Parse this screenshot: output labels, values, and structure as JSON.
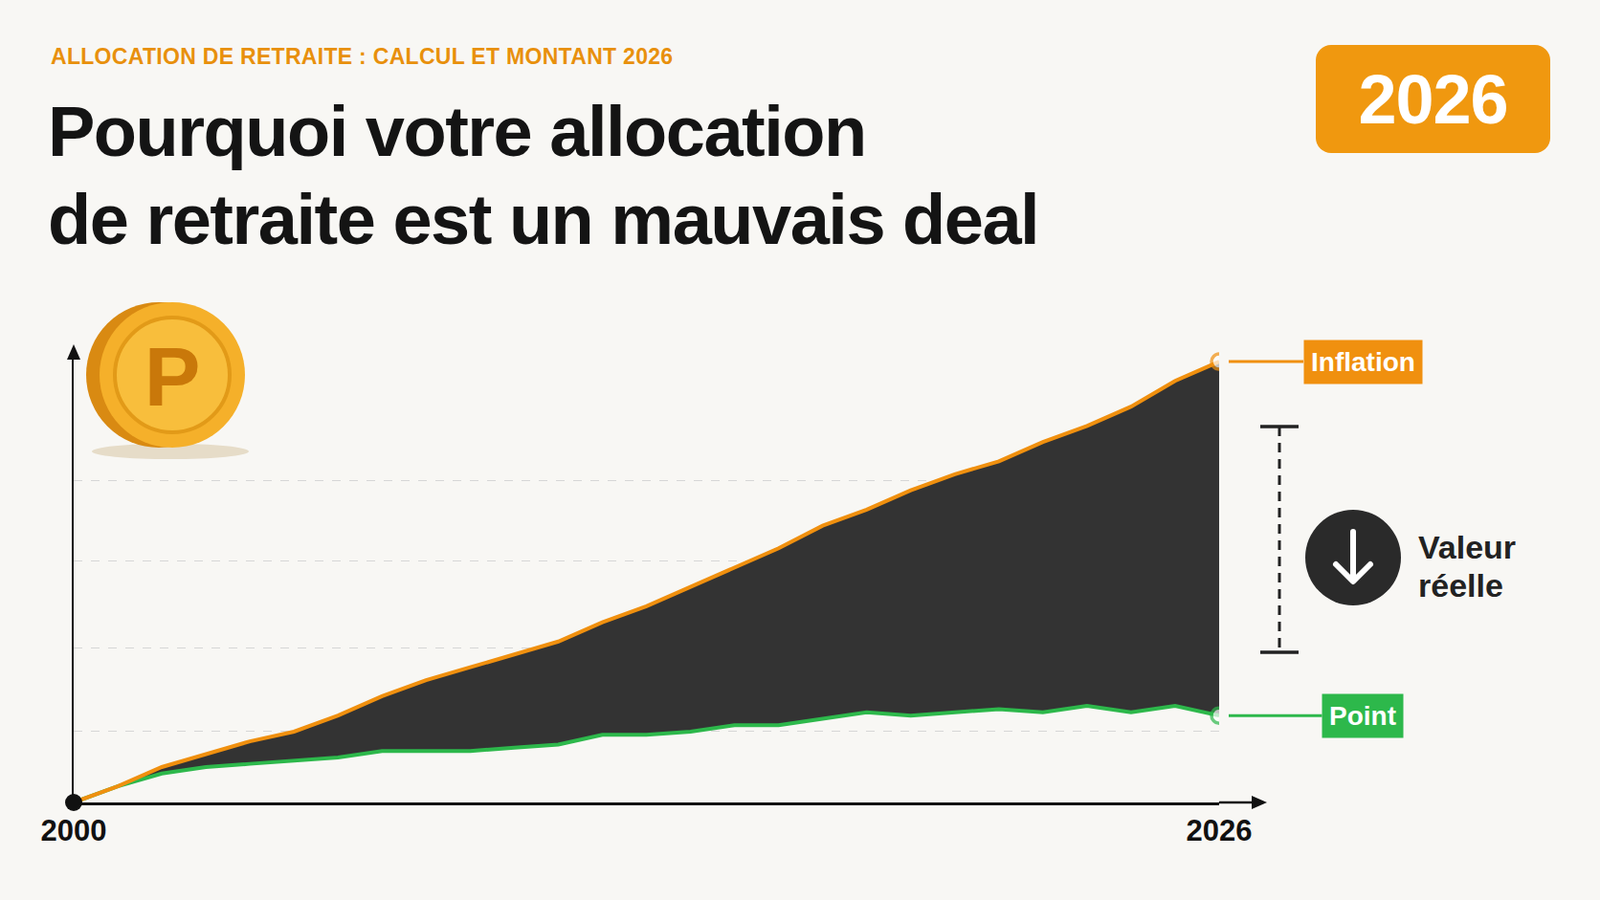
{
  "page": {
    "kicker": "ALLOCATION DE RETRAITE : CALCUL ET MONTANT 2026",
    "badge": "2026",
    "coin": "P"
  },
  "chart_data": {
    "type": "line",
    "title": "Pourquoi votre allocation de retraite est un mauvais deal",
    "x": [
      2000,
      2001,
      2002,
      2003,
      2004,
      2005,
      2006,
      2007,
      2008,
      2009,
      2010,
      2011,
      2012,
      2013,
      2014,
      2015,
      2016,
      2017,
      2018,
      2019,
      2020,
      2021,
      2022,
      2023,
      2024,
      2025,
      2026
    ],
    "series": [
      {
        "name": "Point",
        "color": "#2DB84B",
        "values": [
          0,
          5,
          9,
          11,
          12,
          13,
          14,
          16,
          16,
          16,
          17,
          18,
          21,
          21,
          22,
          24,
          24,
          26,
          28,
          27,
          28,
          29,
          28,
          30,
          28,
          30,
          27
        ]
      },
      {
        "name": "Inflation",
        "color": "#F0900F",
        "values": [
          0,
          5,
          11,
          15,
          19,
          22,
          27,
          33,
          38,
          42,
          46,
          50,
          56,
          61,
          67,
          73,
          79,
          86,
          91,
          97,
          102,
          106,
          112,
          117,
          123,
          131,
          137
        ]
      }
    ],
    "xlim": [
      2000,
      2026
    ],
    "xticks": [
      2000,
      2026
    ],
    "ylim": [
      0,
      140
    ],
    "yticks": [
      22,
      48,
      75,
      100
    ],
    "grid": true,
    "tick_labels": "x",
    "annotations": [
      {
        "text": "Valeur réelle"
      }
    ]
  }
}
